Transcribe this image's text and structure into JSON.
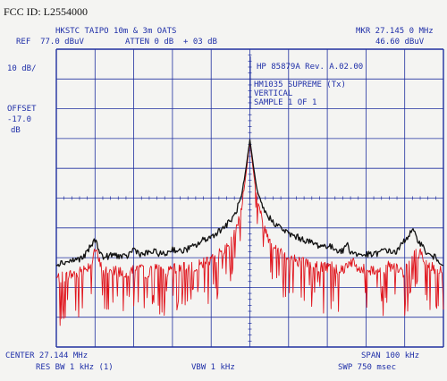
{
  "fcc_id": "FCC ID: L2554000",
  "header": {
    "site": "HKSTC TAIPO 10m & 3m OATS",
    "ref": "REF  77.0 dBuV",
    "atten": "ATTEN 0 dB  + 03 dB",
    "mkr_label": "MKR 27.145 0 MHz",
    "mkr_value": "46.60 dBuV"
  },
  "left": {
    "scale": "10 dB/",
    "offset_label": "OFFSET",
    "offset_value": "-17.0",
    "offset_unit": "dB"
  },
  "annotation": {
    "instrument": "HP 85879A Rev. A.02.00",
    "line1": "HM1035 SUPREME (Tx)",
    "line2": "VERTICAL",
    "line3": "SAMPLE 1 OF 1"
  },
  "footer": {
    "center": "CENTER 27.144 MHz",
    "span": "SPAN 100 kHz",
    "res_bw": "RES BW 1 kHz (1)",
    "vbw": "VBW 1 kHz",
    "swp": "SWP 750 msec"
  },
  "chart_data": {
    "type": "line",
    "x_unit": "kHz offset from center",
    "xlim": [
      -50,
      50
    ],
    "ylim": [
      -23,
      77
    ],
    "y_divisions": 10,
    "x_divisions": 10,
    "grid": true,
    "colors": {
      "grid": "#2030a0",
      "trace_peak": "#111111",
      "trace_sample": "#e0141c"
    },
    "series": [
      {
        "x": [
          -50,
          -46,
          -43,
          -40,
          -38,
          -35,
          -32,
          -30,
          -28,
          -25,
          -22,
          -20,
          -18,
          -16,
          -14,
          -12,
          -10,
          -8,
          -6,
          -4,
          -2,
          -1,
          0,
          1,
          2,
          4,
          6,
          8,
          10,
          12,
          14,
          16,
          18,
          20,
          22,
          24,
          25,
          26,
          28,
          30,
          32,
          34,
          35,
          36,
          38,
          40,
          42,
          44,
          46,
          48,
          50
        ],
        "y": [
          5,
          6,
          7,
          13,
          7,
          8,
          7,
          10,
          8,
          9,
          8,
          10,
          9,
          10,
          11,
          13,
          14,
          16,
          18,
          21,
          28,
          37,
          46.6,
          37,
          28,
          22,
          19,
          17,
          15,
          14,
          13,
          12,
          11,
          11,
          10,
          9,
          12,
          9,
          8,
          8,
          8,
          9,
          10,
          9,
          9,
          13,
          16,
          12,
          8,
          7,
          5
        ]
      },
      {
        "x": [
          -50,
          -47,
          -44,
          -41,
          -40,
          -38,
          -35,
          -32,
          -29,
          -27,
          -24,
          -21,
          -18,
          -15,
          -12,
          -9,
          -6,
          -4,
          -2,
          -1,
          0,
          1,
          2,
          4,
          6,
          9,
          12,
          15,
          18,
          21,
          24,
          26,
          28,
          31,
          34,
          36,
          38,
          40,
          42,
          44,
          46,
          48,
          50
        ],
        "y": [
          0,
          1,
          2,
          5,
          10,
          2,
          3,
          2,
          4,
          2,
          3,
          2,
          4,
          4,
          5,
          7,
          10,
          15,
          25,
          35,
          46,
          35,
          25,
          16,
          11,
          8,
          6,
          5,
          4,
          4,
          3,
          6,
          3,
          3,
          3,
          4,
          3,
          2,
          7,
          9,
          4,
          3,
          2
        ]
      }
    ]
  }
}
